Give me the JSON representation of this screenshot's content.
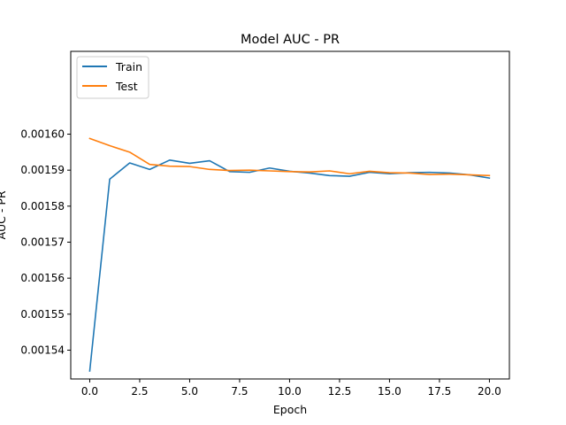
{
  "chart_data": {
    "type": "line",
    "title": "Model AUC - PR",
    "xlabel": "Epoch",
    "ylabel": "AUC - PR",
    "xlim": [
      -0.95,
      21.0
    ],
    "ylim": [
      0.001532,
      0.001623
    ],
    "xticks": [
      0.0,
      2.5,
      5.0,
      7.5,
      10.0,
      12.5,
      15.0,
      17.5,
      20.0
    ],
    "xtick_labels": [
      "0.0",
      "2.5",
      "5.0",
      "7.5",
      "10.0",
      "12.5",
      "15.0",
      "17.5",
      "20.0"
    ],
    "yticks": [
      0.00154,
      0.00155,
      0.00156,
      0.00157,
      0.00158,
      0.00159,
      0.0016
    ],
    "ytick_labels": [
      "0.00154",
      "0.00155",
      "0.00156",
      "0.00157",
      "0.00158",
      "0.00159",
      "0.00160"
    ],
    "grid": false,
    "legend_position": "top-left",
    "x": [
      0,
      1,
      2,
      3,
      4,
      5,
      6,
      7,
      8,
      9,
      10,
      11,
      12,
      13,
      14,
      15,
      16,
      17,
      18,
      19,
      20
    ],
    "series": [
      {
        "name": "Train",
        "color": "#1f77b4",
        "values": [
          0.0015342,
          0.0015875,
          0.001592,
          0.0015902,
          0.0015928,
          0.0015919,
          0.0015926,
          0.0015896,
          0.0015894,
          0.0015906,
          0.0015897,
          0.0015892,
          0.0015885,
          0.0015883,
          0.0015894,
          0.001589,
          0.0015893,
          0.0015894,
          0.0015892,
          0.0015887,
          0.0015878
        ]
      },
      {
        "name": "Test",
        "color": "#ff7f0e",
        "values": [
          0.0015988,
          0.0015968,
          0.001595,
          0.0015916,
          0.0015911,
          0.001591,
          0.0015902,
          0.0015899,
          0.00159,
          0.0015898,
          0.0015896,
          0.0015895,
          0.0015898,
          0.001589,
          0.0015897,
          0.0015893,
          0.0015892,
          0.0015888,
          0.0015889,
          0.0015887,
          0.0015885
        ]
      }
    ]
  }
}
